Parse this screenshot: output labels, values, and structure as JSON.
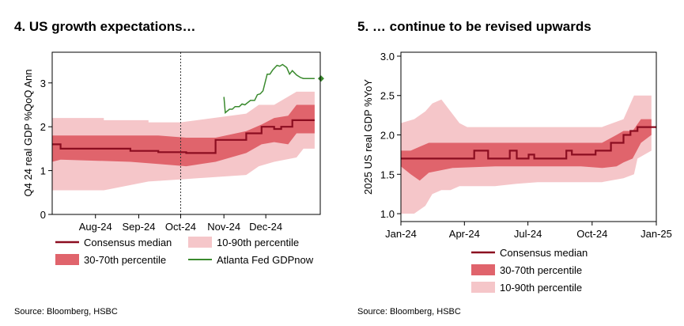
{
  "chart_data": [
    {
      "type": "line",
      "title": "4. US growth expectations…",
      "ylabel": "Q4 24 real GDP %QoQ Ann",
      "xlabel": "",
      "ylim": [
        0,
        3.7
      ],
      "yticks": [
        0,
        1,
        2,
        3
      ],
      "xticks": [
        {
          "label": "Aug-24",
          "x": "2024-08-01"
        },
        {
          "label": "Sep-24",
          "x": "2024-09-01"
        },
        {
          "label": "Oct-24",
          "x": "2024-10-01"
        },
        {
          "label": "Nov-24",
          "x": "2024-11-01"
        },
        {
          "label": "Dec-24",
          "x": "2024-12-01"
        }
      ],
      "xlim": [
        "2024-07-01",
        "2025-01-09"
      ],
      "vline": "2024-10-01",
      "grid": false,
      "legend_position": "bottom",
      "colors": {
        "median": "#8b0d20",
        "p30_70": "#e0646c",
        "p10_90": "#f5c6c9",
        "gdpnow": "#3a8a2e"
      },
      "series": [
        {
          "name": "Consensus median",
          "x": [
            "2024-07-01",
            "2024-07-07",
            "2024-07-07",
            "2024-08-26",
            "2024-08-26",
            "2024-09-15",
            "2024-09-15",
            "2024-10-05",
            "2024-10-05",
            "2024-10-26",
            "2024-10-26",
            "2024-11-17",
            "2024-11-17",
            "2024-11-28",
            "2024-11-28",
            "2024-12-07",
            "2024-12-07",
            "2024-12-12",
            "2024-12-12",
            "2024-12-20",
            "2024-12-20",
            "2024-12-24",
            "2024-12-24",
            "2025-01-05"
          ],
          "values": [
            1.6,
            1.6,
            1.5,
            1.5,
            1.45,
            1.45,
            1.42,
            1.42,
            1.4,
            1.4,
            1.7,
            1.7,
            1.85,
            1.85,
            2.0,
            2.0,
            1.95,
            1.95,
            2.0,
            2.0,
            2.15,
            2.15,
            2.15,
            2.15
          ]
        },
        {
          "name": "30-70th percentile",
          "x": [
            "2024-07-01",
            "2024-07-07",
            "2024-08-26",
            "2024-09-15",
            "2024-10-05",
            "2024-10-26",
            "2024-11-17",
            "2024-11-28",
            "2024-12-07",
            "2024-12-17",
            "2024-12-23",
            "2025-01-05"
          ],
          "upper": [
            1.8,
            1.8,
            1.8,
            1.8,
            1.75,
            1.75,
            1.9,
            2.05,
            2.2,
            2.25,
            2.5,
            2.5
          ],
          "lower": [
            1.2,
            1.25,
            1.2,
            1.15,
            1.1,
            1.2,
            1.4,
            1.6,
            1.65,
            1.6,
            1.85,
            1.85
          ]
        },
        {
          "name": "10-90th percentile",
          "x": [
            "2024-07-01",
            "2024-08-07",
            "2024-08-07",
            "2024-09-08",
            "2024-09-08",
            "2024-10-01",
            "2024-10-01",
            "2024-11-17",
            "2024-11-26",
            "2024-12-07",
            "2024-12-23",
            "2024-12-28",
            "2025-01-05"
          ],
          "upper": [
            2.2,
            2.2,
            2.15,
            2.15,
            2.1,
            2.1,
            2.1,
            2.3,
            2.5,
            2.5,
            2.8,
            2.8,
            2.8
          ],
          "lower": [
            0.55,
            0.55,
            0.55,
            0.75,
            0.75,
            0.8,
            0.8,
            0.9,
            1.1,
            1.2,
            1.3,
            1.5,
            1.5
          ]
        },
        {
          "name": "Atlanta Fed GDPnow",
          "x": [
            "2024-11-01",
            "2024-11-02",
            "2024-11-05",
            "2024-11-07",
            "2024-11-09",
            "2024-11-12",
            "2024-11-14",
            "2024-11-16",
            "2024-11-20",
            "2024-11-23",
            "2024-11-25",
            "2024-11-27",
            "2024-11-29",
            "2024-12-02",
            "2024-12-04",
            "2024-12-06",
            "2024-12-09",
            "2024-12-11",
            "2024-12-13",
            "2024-12-16",
            "2024-12-18",
            "2024-12-20",
            "2024-12-23",
            "2024-12-26",
            "2024-12-28",
            "2025-01-02",
            "2025-01-05"
          ],
          "values": [
            2.68,
            2.32,
            2.4,
            2.4,
            2.46,
            2.46,
            2.52,
            2.5,
            2.6,
            2.6,
            2.73,
            2.75,
            2.82,
            3.2,
            3.2,
            3.3,
            3.4,
            3.38,
            3.42,
            3.35,
            3.2,
            3.28,
            3.18,
            3.12,
            3.1,
            3.1,
            3.1
          ],
          "end_marker": "diamond"
        }
      ]
    },
    {
      "type": "line",
      "title": "5. … continue to be revised upwards",
      "ylabel": "2025 US real GDP %YoY",
      "xlabel": "",
      "ylim": [
        0.9,
        3.05
      ],
      "yticks": [
        1.0,
        1.5,
        2.0,
        2.5,
        3.0
      ],
      "ytick_labels": [
        "1.0",
        "1.5",
        "2.0",
        "2.5",
        "3.0"
      ],
      "xticks": [
        {
          "label": "Jan-24",
          "x": "2024-01-01"
        },
        {
          "label": "Apr-24",
          "x": "2024-04-01"
        },
        {
          "label": "Jul-24",
          "x": "2024-07-01"
        },
        {
          "label": "Oct-24",
          "x": "2024-10-01"
        },
        {
          "label": "Jan-25",
          "x": "2025-01-01"
        }
      ],
      "xlim": [
        "2024-01-01",
        "2025-01-01"
      ],
      "grid": false,
      "legend_position": "bottom",
      "colors": {
        "median": "#8b0d20",
        "p30_70": "#e0646c",
        "p10_90": "#f5c6c9"
      },
      "series": [
        {
          "name": "Consensus median",
          "x": [
            "2024-01-01",
            "2024-04-15",
            "2024-04-15",
            "2024-05-05",
            "2024-05-05",
            "2024-06-05",
            "2024-06-05",
            "2024-06-15",
            "2024-06-15",
            "2024-07-02",
            "2024-07-02",
            "2024-07-10",
            "2024-07-10",
            "2024-08-25",
            "2024-08-25",
            "2024-09-02",
            "2024-09-02",
            "2024-10-06",
            "2024-10-06",
            "2024-10-28",
            "2024-10-28",
            "2024-11-15",
            "2024-11-15",
            "2024-11-25",
            "2024-11-25",
            "2024-12-05",
            "2024-12-05",
            "2025-01-01"
          ],
          "values": [
            1.7,
            1.7,
            1.8,
            1.8,
            1.7,
            1.7,
            1.8,
            1.8,
            1.7,
            1.7,
            1.75,
            1.75,
            1.7,
            1.7,
            1.8,
            1.8,
            1.75,
            1.75,
            1.8,
            1.8,
            1.9,
            1.9,
            2.0,
            2.0,
            2.05,
            2.05,
            2.1,
            2.1
          ]
        },
        {
          "name": "30-70th percentile",
          "x": [
            "2024-01-01",
            "2024-01-15",
            "2024-01-28",
            "2024-02-10",
            "2024-03-15",
            "2024-05-15",
            "2024-07-15",
            "2024-09-15",
            "2024-10-15",
            "2024-11-05",
            "2024-11-15",
            "2024-11-28",
            "2024-12-10",
            "2024-12-25"
          ],
          "upper": [
            1.8,
            1.8,
            1.85,
            1.9,
            1.9,
            1.9,
            1.9,
            1.9,
            1.9,
            2.0,
            2.05,
            2.05,
            2.2,
            2.2
          ],
          "lower": [
            1.6,
            1.5,
            1.42,
            1.52,
            1.58,
            1.6,
            1.6,
            1.6,
            1.58,
            1.6,
            1.65,
            1.7,
            1.9,
            2.0
          ]
        },
        {
          "name": "10-90th percentile",
          "x": [
            "2024-01-01",
            "2024-01-20",
            "2024-02-05",
            "2024-02-15",
            "2024-02-28",
            "2024-03-12",
            "2024-03-25",
            "2024-04-05",
            "2024-05-15",
            "2024-06-15",
            "2024-07-15",
            "2024-09-15",
            "2024-10-15",
            "2024-11-15",
            "2024-11-30",
            "2024-12-05",
            "2024-12-15",
            "2024-12-25"
          ],
          "upper": [
            2.15,
            2.2,
            2.3,
            2.4,
            2.45,
            2.3,
            2.15,
            2.1,
            2.1,
            2.1,
            2.1,
            2.1,
            2.1,
            2.2,
            2.5,
            2.5,
            2.5,
            2.5
          ],
          "lower": [
            1.0,
            1.0,
            1.1,
            1.25,
            1.3,
            1.3,
            1.35,
            1.35,
            1.35,
            1.38,
            1.4,
            1.4,
            1.4,
            1.45,
            1.5,
            1.7,
            1.75,
            1.8
          ]
        }
      ]
    }
  ],
  "sources": [
    "Source: Bloomberg, HSBC",
    "Source: Bloomberg, HSBC"
  ]
}
